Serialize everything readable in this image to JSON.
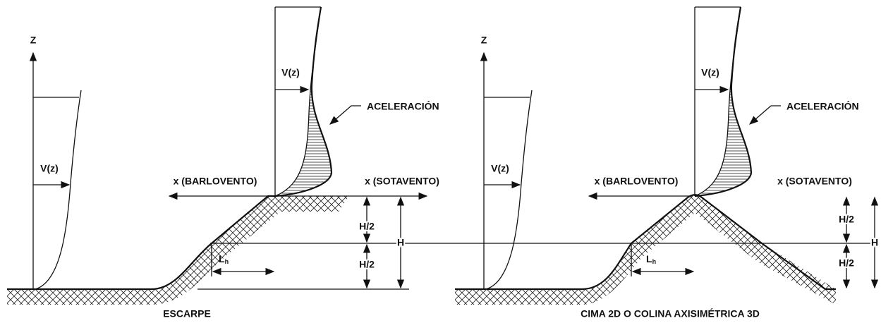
{
  "panels": [
    {
      "caption": "ESCARPE",
      "z_label": "Z",
      "upwind_profile_label": "V(z)",
      "crest_profile_label": "V(z)",
      "acceleration_label": "ACELERACIÓN",
      "upwind_label": "x (BARLOVENTO)",
      "downwind_label": "x (SOTAVENTO)",
      "half_height_upper": "H/2",
      "half_height_lower": "H/2",
      "height": "H",
      "length_label": "L",
      "length_subscript": "h"
    },
    {
      "caption": "CIMA 2D O COLINA AXISIMÉTRICA 3D",
      "z_label": "Z",
      "upwind_profile_label": "V(z)",
      "crest_profile_label": "V(z)",
      "acceleration_label": "ACELERACIÓN",
      "upwind_label": "x (BARLOVENTO)",
      "downwind_label": "x (SOTAVENTO)",
      "half_height_upper": "H/2",
      "half_height_lower": "H/2",
      "height": "H",
      "length_label": "L",
      "length_subscript": "h"
    }
  ]
}
